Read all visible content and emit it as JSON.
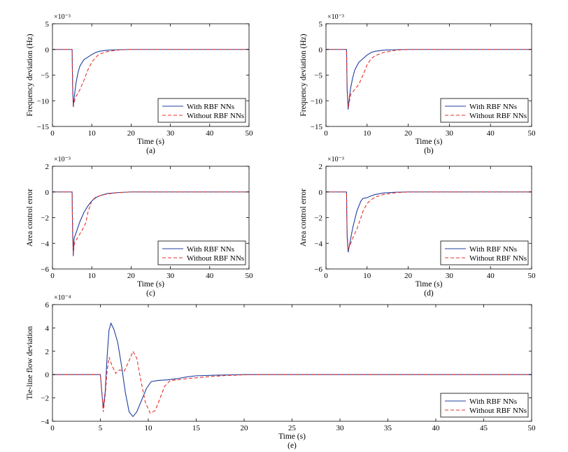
{
  "chart_data": [
    {
      "id": "a",
      "type": "line",
      "caption": "(a)",
      "xlabel": "Time (s)",
      "ylabel": "Frequency deviation (Hz)",
      "exponent": "×10⁻³",
      "xlim": [
        0,
        50
      ],
      "ylim": [
        -15,
        5
      ],
      "xticks": [
        0,
        10,
        20,
        30,
        40,
        50
      ],
      "yticks": [
        5,
        0,
        -5,
        -10,
        -15
      ],
      "legend_position": "lower-right",
      "series": [
        {
          "name": "With RBF NNs",
          "color": "#1f3f9f",
          "dash": "solid",
          "points": [
            [
              0,
              0
            ],
            [
              5,
              0
            ],
            [
              5.05,
              -3
            ],
            [
              5.15,
              -8
            ],
            [
              5.3,
              -11.2
            ],
            [
              5.5,
              -9.5
            ],
            [
              6,
              -6.5
            ],
            [
              6.5,
              -4.5
            ],
            [
              7,
              -3.2
            ],
            [
              8,
              -2
            ],
            [
              9,
              -1.5
            ],
            [
              10,
              -1
            ],
            [
              11,
              -0.6
            ],
            [
              12,
              -0.35
            ],
            [
              14,
              -0.15
            ],
            [
              17,
              -0.05
            ],
            [
              20,
              0
            ],
            [
              50,
              0
            ]
          ]
        },
        {
          "name": "Without RBF NNs",
          "color": "#e8302a",
          "dash": "dashed",
          "points": [
            [
              0,
              0
            ],
            [
              5,
              0
            ],
            [
              5.05,
              -3
            ],
            [
              5.15,
              -7
            ],
            [
              5.3,
              -10.8
            ],
            [
              5.5,
              -10.6
            ],
            [
              5.8,
              -9.3
            ],
            [
              6.3,
              -8.8
            ],
            [
              7,
              -7.8
            ],
            [
              8,
              -6
            ],
            [
              9,
              -4
            ],
            [
              10,
              -2.5
            ],
            [
              11,
              -1.5
            ],
            [
              12,
              -0.9
            ],
            [
              14,
              -0.4
            ],
            [
              17,
              -0.1
            ],
            [
              20,
              0
            ],
            [
              50,
              0
            ]
          ]
        }
      ]
    },
    {
      "id": "b",
      "type": "line",
      "caption": "(b)",
      "xlabel": "Time (s)",
      "ylabel": "Frequency deviation (Hz)",
      "exponent": "×10⁻³",
      "xlim": [
        0,
        50
      ],
      "ylim": [
        -15,
        5
      ],
      "xticks": [
        0,
        10,
        20,
        30,
        40,
        50
      ],
      "yticks": [
        5,
        0,
        -5,
        -10,
        -15
      ],
      "legend_position": "lower-right",
      "series": [
        {
          "name": "With RBF NNs",
          "color": "#1f3f9f",
          "dash": "solid",
          "points": [
            [
              0,
              0
            ],
            [
              5,
              0
            ],
            [
              5.05,
              -3
            ],
            [
              5.15,
              -8
            ],
            [
              5.4,
              -11.7
            ],
            [
              5.6,
              -10
            ],
            [
              6,
              -7.5
            ],
            [
              6.5,
              -5.5
            ],
            [
              7,
              -4
            ],
            [
              8,
              -2.5
            ],
            [
              9,
              -1.8
            ],
            [
              10,
              -1.1
            ],
            [
              11,
              -0.6
            ],
            [
              12,
              -0.35
            ],
            [
              14,
              -0.15
            ],
            [
              17,
              -0.05
            ],
            [
              20,
              0
            ],
            [
              50,
              0
            ]
          ]
        },
        {
          "name": "Without RBF NNs",
          "color": "#e8302a",
          "dash": "dashed",
          "points": [
            [
              0,
              0
            ],
            [
              5,
              0
            ],
            [
              5.05,
              -3
            ],
            [
              5.15,
              -7
            ],
            [
              5.4,
              -11.3
            ],
            [
              5.6,
              -10.6
            ],
            [
              6,
              -8.8
            ],
            [
              6.5,
              -8.3
            ],
            [
              7,
              -7.8
            ],
            [
              8,
              -6.8
            ],
            [
              9,
              -5
            ],
            [
              10,
              -3
            ],
            [
              11,
              -1.8
            ],
            [
              12,
              -1.2
            ],
            [
              14,
              -0.6
            ],
            [
              17,
              -0.15
            ],
            [
              20,
              0
            ],
            [
              50,
              0
            ]
          ]
        }
      ]
    },
    {
      "id": "c",
      "type": "line",
      "caption": "(c)",
      "xlabel": "Time (s)",
      "ylabel": "Area control error",
      "exponent": "×10⁻³",
      "xlim": [
        0,
        50
      ],
      "ylim": [
        -6,
        2
      ],
      "xticks": [
        0,
        10,
        20,
        30,
        40,
        50
      ],
      "yticks": [
        2,
        0,
        -2,
        -4,
        -6
      ],
      "legend_position": "lower-right",
      "series": [
        {
          "name": "With RBF NNs",
          "color": "#1f3f9f",
          "dash": "solid",
          "points": [
            [
              0,
              0
            ],
            [
              5,
              0
            ],
            [
              5.05,
              -1.5
            ],
            [
              5.15,
              -3.5
            ],
            [
              5.3,
              -5
            ],
            [
              5.5,
              -3.6
            ],
            [
              6,
              -3.2
            ],
            [
              7,
              -2.3
            ],
            [
              8,
              -1.6
            ],
            [
              9,
              -1.1
            ],
            [
              10,
              -0.7
            ],
            [
              11,
              -0.45
            ],
            [
              12,
              -0.3
            ],
            [
              14,
              -0.12
            ],
            [
              17,
              -0.04
            ],
            [
              20,
              0
            ],
            [
              50,
              0
            ]
          ]
        },
        {
          "name": "Without RBF NNs",
          "color": "#e8302a",
          "dash": "dashed",
          "points": [
            [
              0,
              0
            ],
            [
              5,
              0
            ],
            [
              5.05,
              -1.5
            ],
            [
              5.15,
              -3
            ],
            [
              5.3,
              -4.8
            ],
            [
              5.6,
              -4
            ],
            [
              6.5,
              -3.5
            ],
            [
              7.5,
              -3
            ],
            [
              8.5,
              -2.4
            ],
            [
              9,
              -1.6
            ],
            [
              10,
              -0.7
            ],
            [
              11,
              -0.4
            ],
            [
              12,
              -0.3
            ],
            [
              14,
              -0.15
            ],
            [
              17,
              -0.05
            ],
            [
              20,
              0
            ],
            [
              50,
              0
            ]
          ]
        }
      ]
    },
    {
      "id": "d",
      "type": "line",
      "caption": "(d)",
      "xlabel": "Time (s)",
      "ylabel": "Area control error",
      "exponent": "×10⁻³",
      "xlim": [
        0,
        50
      ],
      "ylim": [
        -6,
        2
      ],
      "xticks": [
        0,
        10,
        20,
        30,
        40,
        50
      ],
      "yticks": [
        2,
        0,
        -2,
        -4,
        -6
      ],
      "legend_position": "lower-right",
      "series": [
        {
          "name": "With RBF NNs",
          "color": "#1f3f9f",
          "dash": "solid",
          "points": [
            [
              0,
              0
            ],
            [
              5,
              0
            ],
            [
              5.05,
              -1.5
            ],
            [
              5.15,
              -3.5
            ],
            [
              5.4,
              -4.7
            ],
            [
              5.8,
              -4
            ],
            [
              6.5,
              -2.8
            ],
            [
              7.5,
              -1.5
            ],
            [
              8.5,
              -0.7
            ],
            [
              9,
              -0.5
            ],
            [
              10,
              -0.45
            ],
            [
              11,
              -0.3
            ],
            [
              12,
              -0.2
            ],
            [
              14,
              -0.08
            ],
            [
              17,
              -0.02
            ],
            [
              20,
              0
            ],
            [
              50,
              0
            ]
          ]
        },
        {
          "name": "Without RBF NNs",
          "color": "#e8302a",
          "dash": "dashed",
          "points": [
            [
              0,
              0
            ],
            [
              5,
              0
            ],
            [
              5.05,
              -1.5
            ],
            [
              5.15,
              -3.2
            ],
            [
              5.4,
              -4.5
            ],
            [
              5.8,
              -4.2
            ],
            [
              6.5,
              -3.6
            ],
            [
              7.5,
              -2.9
            ],
            [
              8.5,
              -2
            ],
            [
              9,
              -1.5
            ],
            [
              10,
              -0.9
            ],
            [
              11,
              -0.6
            ],
            [
              12,
              -0.4
            ],
            [
              14,
              -0.2
            ],
            [
              17,
              -0.06
            ],
            [
              20,
              0
            ],
            [
              50,
              0
            ]
          ]
        }
      ]
    },
    {
      "id": "e",
      "type": "line",
      "caption": "(e)",
      "xlabel": "Time (s)",
      "ylabel": "Tie-line flow deviation",
      "exponent": "×10⁻⁴",
      "xlim": [
        0,
        50
      ],
      "ylim": [
        -4,
        6
      ],
      "xticks": [
        0,
        5,
        10,
        15,
        20,
        25,
        30,
        35,
        40,
        45,
        50
      ],
      "yticks": [
        6,
        4,
        2,
        0,
        -2,
        -4
      ],
      "legend_position": "lower-right",
      "series": [
        {
          "name": "With RBF NNs",
          "color": "#1f3f9f",
          "dash": "solid",
          "points": [
            [
              0,
              0
            ],
            [
              5,
              0
            ],
            [
              5.1,
              -1
            ],
            [
              5.3,
              -2.9
            ],
            [
              5.5,
              -1.5
            ],
            [
              5.7,
              1.5
            ],
            [
              5.9,
              3.8
            ],
            [
              6.1,
              4.4
            ],
            [
              6.4,
              3.9
            ],
            [
              6.8,
              2.8
            ],
            [
              7.2,
              0.8
            ],
            [
              7.6,
              -1.5
            ],
            [
              8.0,
              -3.2
            ],
            [
              8.4,
              -3.6
            ],
            [
              8.8,
              -3.2
            ],
            [
              9.3,
              -2.2
            ],
            [
              9.8,
              -1.2
            ],
            [
              10.3,
              -0.6
            ],
            [
              11,
              -0.5
            ],
            [
              12,
              -0.45
            ],
            [
              13,
              -0.35
            ],
            [
              14,
              -0.2
            ],
            [
              15,
              -0.1
            ],
            [
              17,
              -0.05
            ],
            [
              20,
              0
            ],
            [
              50,
              0
            ]
          ]
        },
        {
          "name": "Without RBF NNs",
          "color": "#e8302a",
          "dash": "dashed",
          "points": [
            [
              0,
              0
            ],
            [
              5,
              0
            ],
            [
              5.1,
              -1
            ],
            [
              5.3,
              -3.2
            ],
            [
              5.5,
              -1.8
            ],
            [
              5.7,
              0.3
            ],
            [
              5.9,
              1.5
            ],
            [
              6.2,
              0.8
            ],
            [
              6.6,
              0.1
            ],
            [
              7,
              0.4
            ],
            [
              7.5,
              0.3
            ],
            [
              8.0,
              1.2
            ],
            [
              8.4,
              2.0
            ],
            [
              8.8,
              1.4
            ],
            [
              9.2,
              -0.4
            ],
            [
              9.7,
              -2.4
            ],
            [
              10.2,
              -3.3
            ],
            [
              10.7,
              -3.1
            ],
            [
              11.2,
              -2.1
            ],
            [
              11.7,
              -1.0
            ],
            [
              12.3,
              -0.5
            ],
            [
              13,
              -0.45
            ],
            [
              14,
              -0.35
            ],
            [
              16,
              -0.2
            ],
            [
              18,
              -0.08
            ],
            [
              20,
              -0.02
            ],
            [
              22,
              0
            ],
            [
              50,
              0
            ]
          ]
        }
      ]
    }
  ]
}
